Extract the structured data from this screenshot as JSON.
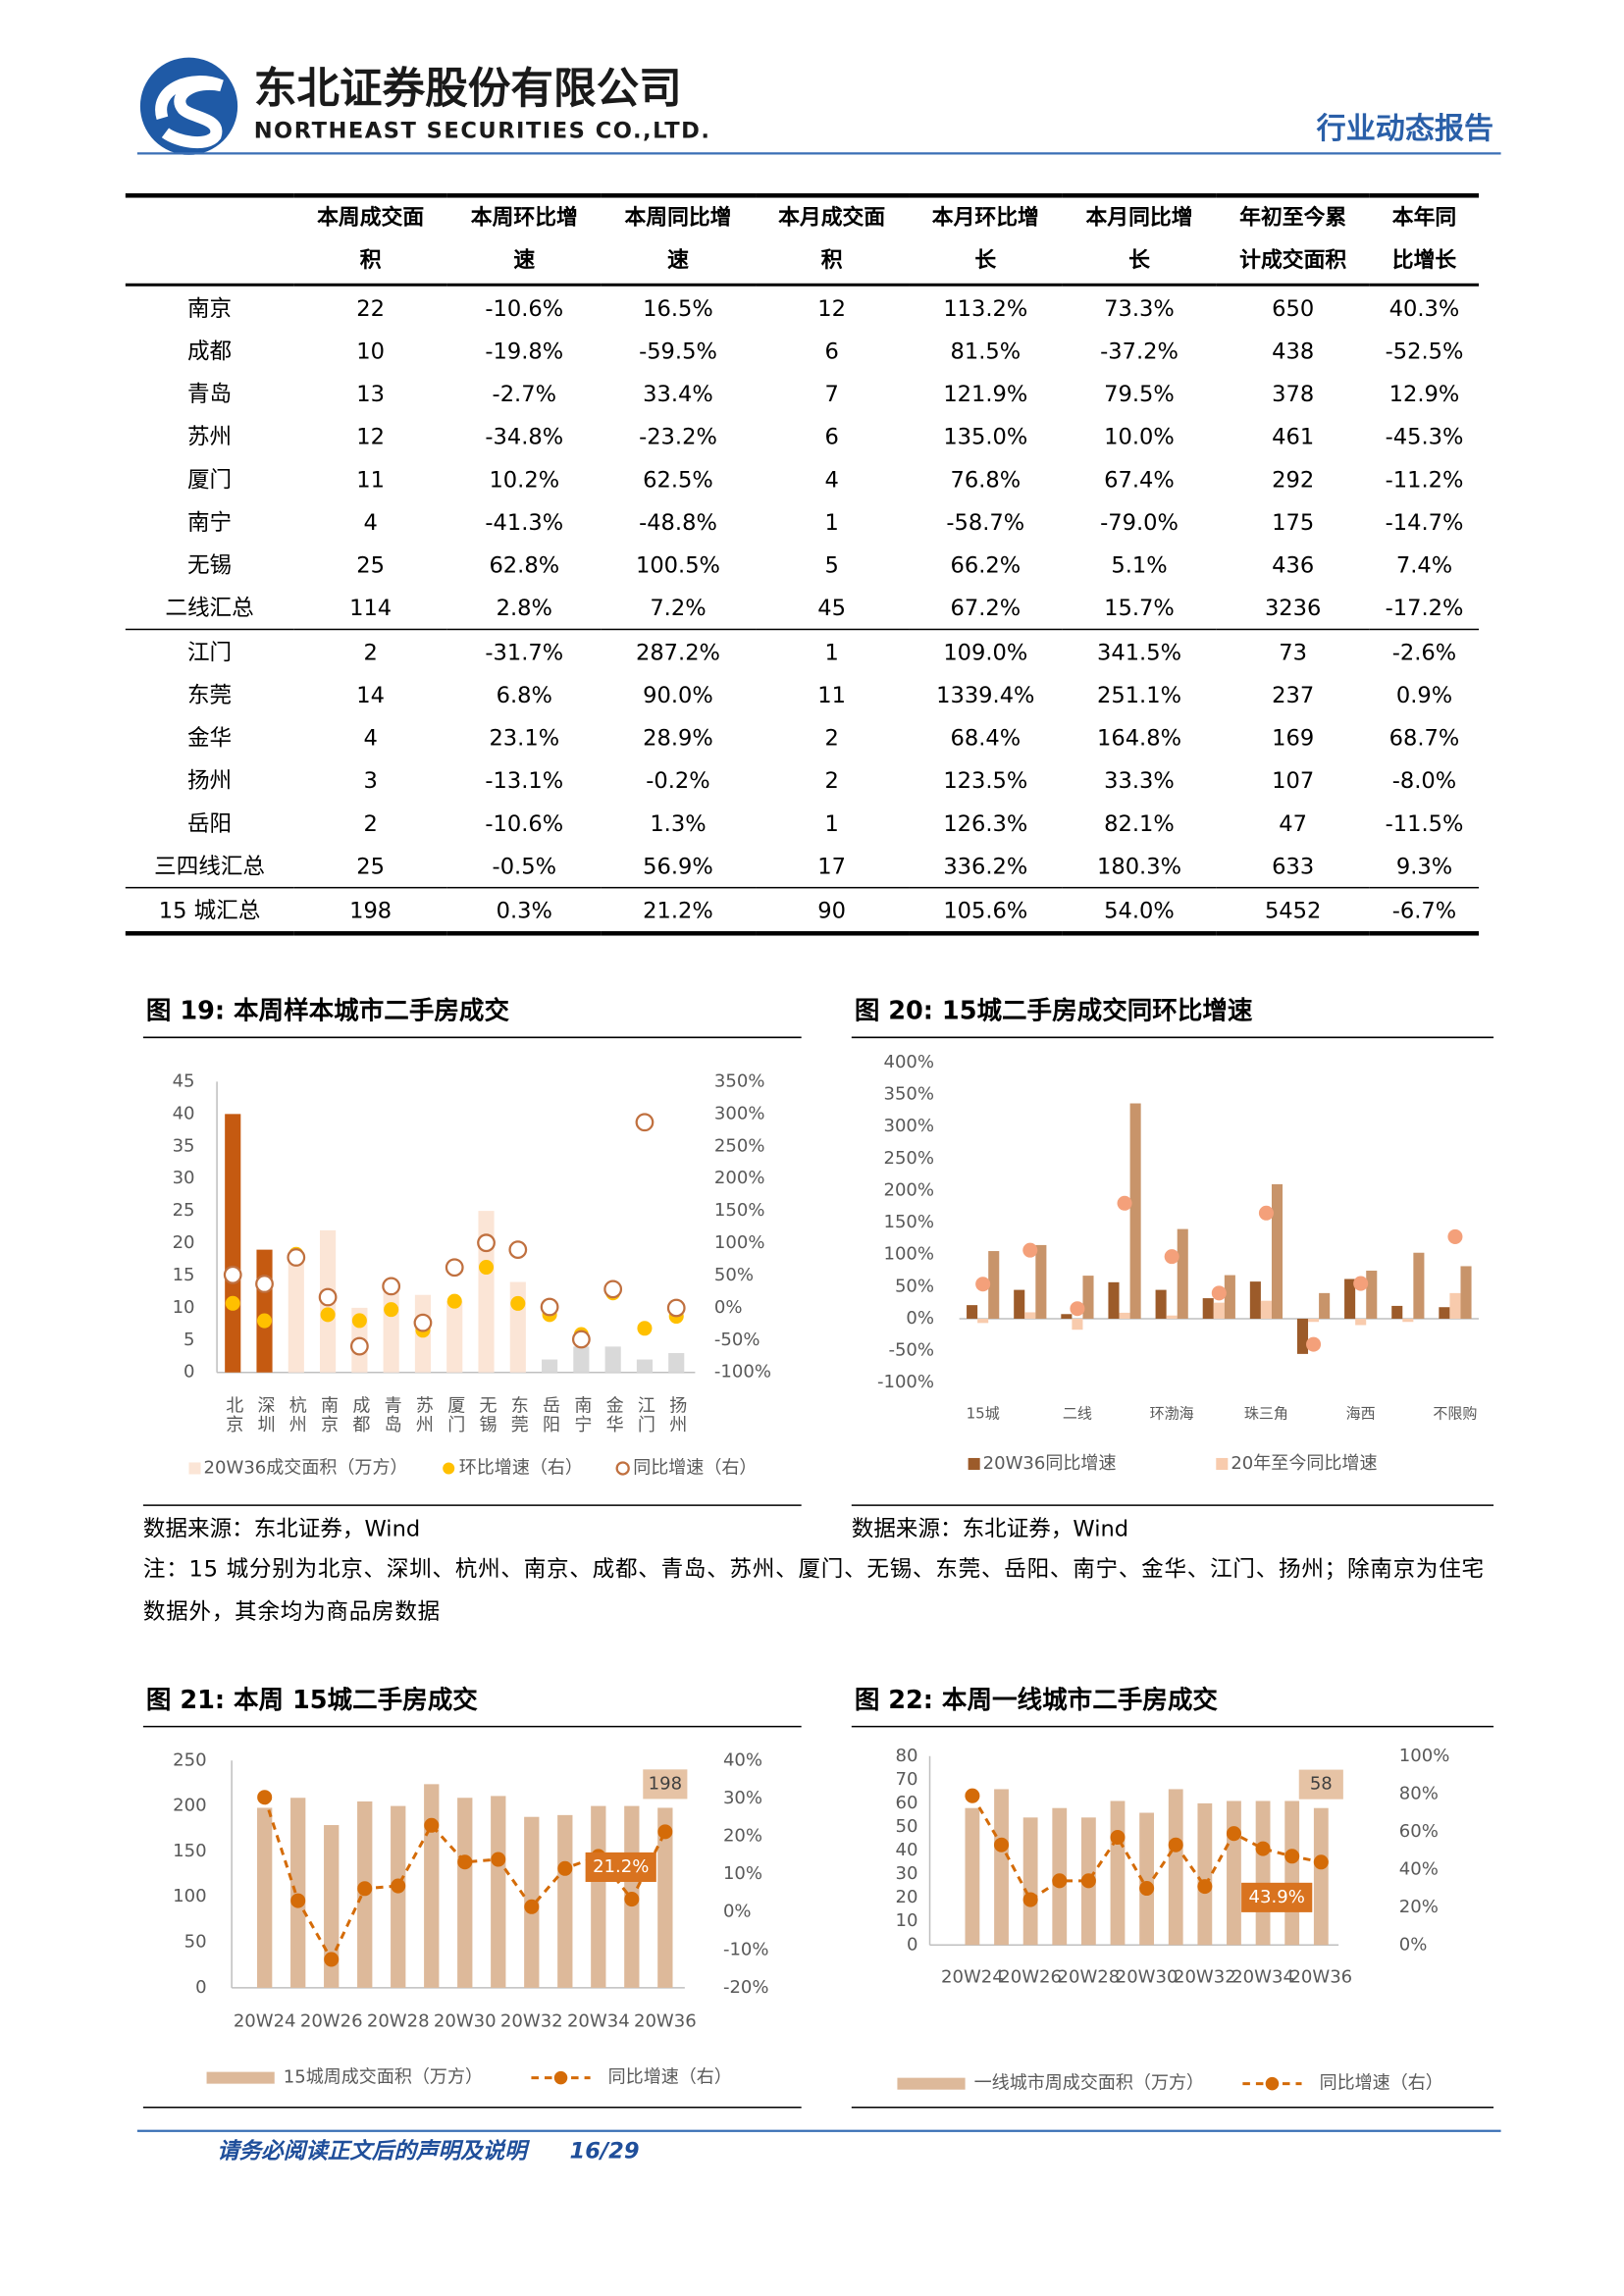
{
  "header": {
    "company_cn": "东北证券股份有限公司",
    "company_en": "NORTHEAST SECURITIES CO.,LTD.",
    "report_type": "行业动态报告"
  },
  "table": {
    "header": [
      "本周成交面积",
      "本周环比增速",
      "本周同比增速",
      "本月成交面积",
      "本月环比增长",
      "本月同比增长",
      "年初至今累计成交面积",
      "本年同比增长"
    ],
    "rows": [
      [
        "南京",
        "22",
        "-10.6%",
        "16.5%",
        "12",
        "113.2%",
        "73.3%",
        "650",
        "40.3%"
      ],
      [
        "成都",
        "10",
        "-19.8%",
        "-59.5%",
        "6",
        "81.5%",
        "-37.2%",
        "438",
        "-52.5%"
      ],
      [
        "青岛",
        "13",
        "-2.7%",
        "33.4%",
        "7",
        "121.9%",
        "79.5%",
        "378",
        "12.9%"
      ],
      [
        "苏州",
        "12",
        "-34.8%",
        "-23.2%",
        "6",
        "135.0%",
        "10.0%",
        "461",
        "-45.3%"
      ],
      [
        "厦门",
        "11",
        "10.2%",
        "62.5%",
        "4",
        "76.8%",
        "67.4%",
        "292",
        "-11.2%"
      ],
      [
        "南宁",
        "4",
        "-41.3%",
        "-48.8%",
        "1",
        "-58.7%",
        "-79.0%",
        "175",
        "-14.7%"
      ],
      [
        "无锡",
        "25",
        "62.8%",
        "100.5%",
        "5",
        "66.2%",
        "5.1%",
        "436",
        "7.4%"
      ],
      [
        "二线汇总",
        "114",
        "2.8%",
        "7.2%",
        "45",
        "67.2%",
        "15.7%",
        "3236",
        "-17.2%"
      ],
      [
        "江门",
        "2",
        "-31.7%",
        "287.2%",
        "1",
        "109.0%",
        "341.5%",
        "73",
        "-2.6%"
      ],
      [
        "东莞",
        "14",
        "6.8%",
        "90.0%",
        "11",
        "1339.4%",
        "251.1%",
        "237",
        "0.9%"
      ],
      [
        "金华",
        "4",
        "23.1%",
        "28.9%",
        "2",
        "68.4%",
        "164.8%",
        "169",
        "68.7%"
      ],
      [
        "扬州",
        "3",
        "-13.1%",
        "-0.2%",
        "2",
        "123.5%",
        "33.3%",
        "107",
        "-8.0%"
      ],
      [
        "岳阳",
        "2",
        "-10.6%",
        "1.3%",
        "1",
        "126.3%",
        "82.1%",
        "47",
        "-11.5%"
      ],
      [
        "三四线汇总",
        "25",
        "-0.5%",
        "56.9%",
        "17",
        "336.2%",
        "180.3%",
        "633",
        "9.3%"
      ],
      [
        "15 城汇总",
        "198",
        "0.3%",
        "21.2%",
        "90",
        "105.6%",
        "54.0%",
        "5452",
        "-6.7%"
      ]
    ]
  },
  "chart_data": [
    {
      "type": "combo",
      "title": "图 19: 本周样本城市二手房成交",
      "source": "数据来源：东北证券，Wind",
      "categories": [
        "北京",
        "深圳",
        "杭州",
        "南京",
        "成都",
        "青岛",
        "苏州",
        "厦门",
        "无锡",
        "东莞",
        "岳阳",
        "南宁",
        "金华",
        "江门",
        "扬州"
      ],
      "ylim": [
        0,
        45
      ],
      "yticks": [
        0,
        5,
        10,
        15,
        20,
        25,
        30,
        35,
        40,
        45
      ],
      "y2lim": [
        -100,
        350
      ],
      "y2ticks": [
        {
          "value": -100,
          "label": "-100%"
        },
        {
          "value": -50,
          "label": "-50%"
        },
        {
          "value": 0,
          "label": "0%"
        },
        {
          "value": 50,
          "label": "50%"
        },
        {
          "value": 100,
          "label": "100%"
        },
        {
          "value": 150,
          "label": "150%"
        },
        {
          "value": 200,
          "label": "200%"
        },
        {
          "value": 250,
          "label": "250%"
        },
        {
          "value": 300,
          "label": "300%"
        },
        {
          "value": 350,
          "label": "350%"
        }
      ],
      "series": [
        {
          "name": "20W36成交面积（万方）",
          "kind": "bar",
          "color": "#fbe5d6",
          "colors": [
            "#c55a11",
            "#c55a11",
            "#fbe5d6",
            "#fbe5d6",
            "#fbe5d6",
            "#fbe5d6",
            "#fbe5d6",
            "#fbe5d6",
            "#fbe5d6",
            "#fbe5d6",
            "#d9d9d9",
            "#d9d9d9",
            "#d9d9d9",
            "#d9d9d9",
            "#d9d9d9"
          ],
          "values": [
            40,
            19,
            17,
            22,
            10,
            13,
            12,
            11,
            25,
            14,
            2,
            4,
            4,
            2,
            3
          ]
        },
        {
          "name": "环比增速（右）",
          "kind": "scatter",
          "axis": "y2",
          "color": "#ffc000",
          "values": [
            7,
            -20,
            83,
            -10.6,
            -19.8,
            -2.7,
            -34.8,
            10.2,
            62.8,
            6.8,
            -10.6,
            -41.3,
            23.1,
            -31.7,
            -13.1
          ]
        },
        {
          "name": "同比增速（右）",
          "kind": "scatter",
          "marker": "hollow",
          "axis": "y2",
          "color": "#c0703f",
          "values": [
            51,
            37,
            78,
            16.5,
            -59.5,
            33.4,
            -23.2,
            62.5,
            100.5,
            90.0,
            1.3,
            -48.8,
            28.9,
            287.2,
            -0.2
          ]
        }
      ]
    },
    {
      "type": "bar",
      "title": "图 20: 15城二手房成交同环比增速",
      "source": "数据来源：东北证券，Wind",
      "categories": [
        "15城",
        null,
        "二线",
        null,
        "环渤海",
        null,
        "珠三角",
        null,
        "海西",
        null,
        "不限购"
      ],
      "ylim": [
        -100,
        400
      ],
      "yticks": [
        {
          "value": -100,
          "label": "-100%"
        },
        {
          "value": -50,
          "label": "-50%"
        },
        {
          "value": 0,
          "label": "0%"
        },
        {
          "value": 50,
          "label": "50%"
        },
        {
          "value": 100,
          "label": "100%"
        },
        {
          "value": 150,
          "label": "150%"
        },
        {
          "value": 200,
          "label": "200%"
        },
        {
          "value": 250,
          "label": "250%"
        },
        {
          "value": 300,
          "label": "300%"
        },
        {
          "value": 350,
          "label": "350%"
        },
        {
          "value": 400,
          "label": "400%"
        }
      ],
      "series": [
        {
          "name": "20W36同比增速",
          "kind": "bar",
          "color": "#9c5b2a",
          "values": [
            21.2,
            45,
            7.2,
            56.9,
            45,
            32,
            58,
            -55,
            62,
            20,
            18
          ]
        },
        {
          "name": "20年至今同比增速",
          "kind": "bar",
          "color": "#f8cbad",
          "values": [
            -6.7,
            10,
            -17.2,
            9.3,
            5,
            25,
            28,
            -5,
            -10,
            -5,
            40
          ]
        },
        {
          "kind": "bar",
          "color": "#c8946a",
          "values": [
            105.6,
            115,
            67.2,
            336.2,
            140,
            68,
            210,
            40,
            75,
            103,
            82
          ]
        },
        {
          "kind": "scatter",
          "color": "#f4a07a",
          "values": [
            54.0,
            107,
            15.7,
            180.3,
            97,
            40,
            165,
            -40,
            55,
            null,
            128
          ]
        }
      ]
    },
    {
      "type": "combo",
      "title": "图 21: 本周 15城二手房成交",
      "categories": [
        "20W24",
        null,
        "20W26",
        null,
        "20W28",
        null,
        "20W30",
        null,
        "20W32",
        null,
        "20W34",
        null,
        "20W36"
      ],
      "ylim": [
        0,
        250
      ],
      "yticks": [
        0,
        50,
        100,
        150,
        200,
        250
      ],
      "y2lim": [
        -20,
        40
      ],
      "y2ticks": [
        {
          "value": -20,
          "label": "-20%"
        },
        {
          "value": -10,
          "label": "-10%"
        },
        {
          "value": 0,
          "label": "0%"
        },
        {
          "value": 10,
          "label": "10%"
        },
        {
          "value": 20,
          "label": "20%"
        },
        {
          "value": 30,
          "label": "30%"
        },
        {
          "value": 40,
          "label": "40%"
        }
      ],
      "series": [
        {
          "name": "15城周成交面积（万方）",
          "kind": "bar",
          "color": "#ddb99a",
          "data_labels": "last",
          "values": [
            198,
            209,
            179,
            205,
            200,
            224,
            209,
            211,
            188,
            190,
            200,
            200,
            198
          ]
        },
        {
          "name": "同比增速（右）",
          "kind": "line",
          "axis": "y2",
          "color": "#d46b08",
          "data_labels": "last",
          "values": [
            30.3,
            3.0,
            -12.5,
            6.2,
            6.9,
            22.9,
            13.2,
            13.9,
            1.4,
            11.5,
            14.7,
            3.4,
            21.2
          ],
          "value_labels": [
            null,
            null,
            null,
            null,
            null,
            null,
            null,
            null,
            null,
            null,
            null,
            null,
            "21.2%"
          ]
        }
      ]
    },
    {
      "type": "combo",
      "title": "图 22: 本周一线城市二手房成交",
      "categories": [
        "20W24",
        null,
        "20W26",
        null,
        "20W28",
        null,
        "20W30",
        null,
        "20W32",
        null,
        "20W34",
        null,
        "20W36"
      ],
      "ylim": [
        0,
        80
      ],
      "yticks": [
        0,
        10,
        20,
        30,
        40,
        50,
        60,
        70,
        80
      ],
      "y2lim": [
        0,
        100
      ],
      "y2ticks": [
        {
          "value": 0,
          "label": "0%"
        },
        {
          "value": 20,
          "label": "20%"
        },
        {
          "value": 40,
          "label": "40%"
        },
        {
          "value": 60,
          "label": "60%"
        },
        {
          "value": 80,
          "label": "80%"
        },
        {
          "value": 100,
          "label": "100%"
        }
      ],
      "series": [
        {
          "name": "一线城市周成交面积（万方）",
          "kind": "bar",
          "color": "#ddb99a",
          "data_labels": "last",
          "values": [
            58,
            66,
            54,
            58,
            54,
            61,
            56,
            66,
            60,
            61,
            61,
            61,
            58
          ]
        },
        {
          "name": "同比增速（右）",
          "kind": "line",
          "axis": "y2",
          "color": "#d46b08",
          "data_labels": "last",
          "values": [
            79,
            53,
            24,
            34,
            34,
            57,
            30,
            53,
            31,
            59,
            51,
            47,
            43.9
          ],
          "value_labels": [
            null,
            null,
            null,
            null,
            null,
            null,
            null,
            null,
            null,
            null,
            null,
            null,
            "43.9%"
          ]
        }
      ]
    }
  ],
  "notes": {
    "source_2": "数据来源：东北证券，Wind",
    "note": "注：15 城分别为北京、深圳、杭州、南京、成都、青岛、苏州、厦门、无锡、东莞、岳阳、南宁、金华、江门、扬州；除南京为住宅数据外，其余均为商品房数据"
  },
  "footer": {
    "disclaimer": "请务必阅读正文后的声明及说明",
    "page": "16/29"
  }
}
